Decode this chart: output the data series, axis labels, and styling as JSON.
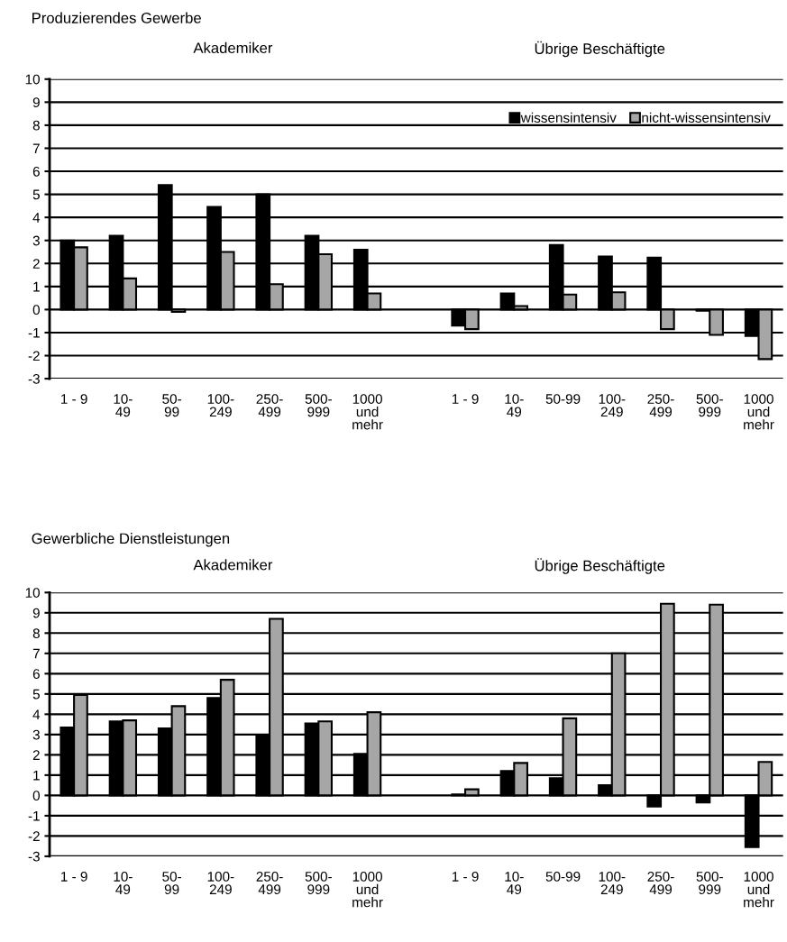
{
  "chart_data": [
    {
      "type": "bar",
      "title": "Produzierendes Gewerbe",
      "annotations": [
        "Akademiker",
        "Übrige Beschäftigte"
      ],
      "categories": [
        "1 - 9",
        "10-\n49",
        "50-\n99",
        "100-\n249",
        "250-\n499",
        "500-\n999",
        "1000\nund\nmehr",
        null,
        "1 - 9",
        "10-\n49",
        "50-99",
        "100-\n249",
        "250-\n499",
        "500-\n999",
        "1000\nund\nmehr"
      ],
      "series": [
        {
          "name": "wissensintensiv",
          "color": "#000000",
          "values": [
            3.0,
            3.2,
            5.4,
            4.45,
            5.0,
            3.2,
            2.6,
            null,
            -0.7,
            0.7,
            2.8,
            2.3,
            2.25,
            -0.05,
            -1.15
          ]
        },
        {
          "name": "nicht-wissensintensiv",
          "color": "#a6a6a6",
          "values": [
            2.7,
            1.35,
            -0.1,
            2.5,
            1.1,
            2.4,
            0.7,
            null,
            -0.85,
            0.15,
            0.65,
            0.75,
            -0.85,
            -1.1,
            -2.15
          ]
        }
      ],
      "ylim": [
        -3,
        10
      ],
      "yticks": [
        -3,
        -2,
        -1,
        0,
        1,
        2,
        3,
        4,
        5,
        6,
        7,
        8,
        9,
        10
      ],
      "grid": "y",
      "legend": "top right"
    },
    {
      "type": "bar",
      "title": "Gewerbliche Dienstleistungen",
      "annotations": [
        "Akademiker",
        "Übrige Beschäftigte"
      ],
      "categories": [
        "1 - 9",
        "10-\n49",
        "50-\n99",
        "100-\n249",
        "250-\n499",
        "500-\n999",
        "1000\nund\nmehr",
        null,
        "1 - 9",
        "10-\n49",
        "50-99",
        "100-\n249",
        "250-\n499",
        "500-\n999",
        "1000\nund\nmehr"
      ],
      "series": [
        {
          "color": "#000000",
          "values": [
            3.35,
            3.65,
            3.3,
            4.8,
            2.95,
            3.55,
            2.05,
            null,
            0.05,
            1.2,
            0.85,
            0.5,
            -0.55,
            -0.35,
            -2.55
          ]
        },
        {
          "color": "#a6a6a6",
          "values": [
            4.95,
            3.7,
            4.4,
            5.7,
            8.7,
            3.65,
            4.1,
            null,
            0.3,
            1.6,
            3.8,
            7.0,
            9.45,
            9.4,
            1.65
          ]
        }
      ],
      "ylim": [
        -3,
        10
      ],
      "yticks": [
        -3,
        -2,
        -1,
        0,
        1,
        2,
        3,
        4,
        5,
        6,
        7,
        8,
        9,
        10
      ],
      "grid": "y"
    }
  ]
}
